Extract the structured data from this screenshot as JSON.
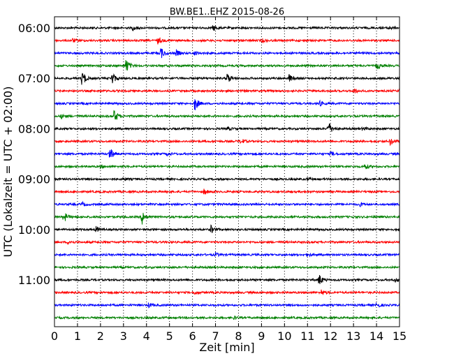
{
  "chart_data": {
    "type": "line",
    "title": "BW.BE1..EHZ 2015-08-26",
    "xlabel": "Zeit  [min]",
    "ylabel": "UTC (Lokalzeit = UTC + 02:00)",
    "xlim": [
      0,
      15
    ],
    "x_ticks": [
      "0",
      "1",
      "2",
      "3",
      "4",
      "5",
      "6",
      "7",
      "8",
      "9",
      "10",
      "11",
      "12",
      "13",
      "14",
      "15"
    ],
    "y_ticks": [
      "06:00",
      "07:00",
      "08:00",
      "09:00",
      "10:00",
      "11:00"
    ],
    "grid": "dotted-vertical",
    "colors": [
      "#000000",
      "#ff0000",
      "#0000ff",
      "#008000"
    ],
    "series": [
      {
        "start": "06:00",
        "color": "#000000",
        "events": [
          {
            "t": 3.4,
            "amp": 0.25
          },
          {
            "t": 6.9,
            "amp": 0.3
          },
          {
            "t": 14.5,
            "amp": 0.2
          }
        ]
      },
      {
        "start": "06:15",
        "color": "#ff0000",
        "events": [
          {
            "t": 0.8,
            "amp": 0.2
          },
          {
            "t": 4.5,
            "amp": 0.35
          },
          {
            "t": 9.0,
            "amp": 0.2
          }
        ]
      },
      {
        "start": "06:30",
        "color": "#0000ff",
        "events": [
          {
            "t": 4.6,
            "amp": 0.7
          },
          {
            "t": 5.3,
            "amp": 0.3
          },
          {
            "t": 6.1,
            "amp": 0.2
          }
        ]
      },
      {
        "start": "06:45",
        "color": "#008000",
        "events": [
          {
            "t": 3.1,
            "amp": 0.8
          },
          {
            "t": 14.0,
            "amp": 0.4
          }
        ]
      },
      {
        "start": "07:00",
        "color": "#000000",
        "events": [
          {
            "t": 1.2,
            "amp": 0.9
          },
          {
            "t": 2.5,
            "amp": 0.7
          },
          {
            "t": 7.5,
            "amp": 0.6
          },
          {
            "t": 10.2,
            "amp": 0.4
          }
        ]
      },
      {
        "start": "07:15",
        "color": "#ff0000",
        "events": [
          {
            "t": 13.0,
            "amp": 0.3
          },
          {
            "t": 15.0,
            "amp": 0.4
          }
        ]
      },
      {
        "start": "07:30",
        "color": "#0000ff",
        "events": [
          {
            "t": 6.1,
            "amp": 0.8
          },
          {
            "t": 11.5,
            "amp": 0.3
          }
        ]
      },
      {
        "start": "07:45",
        "color": "#008000",
        "events": [
          {
            "t": 2.6,
            "amp": 0.7
          },
          {
            "t": 0.3,
            "amp": 0.2
          }
        ]
      },
      {
        "start": "08:00",
        "color": "#000000",
        "events": [
          {
            "t": 11.9,
            "amp": 0.8
          },
          {
            "t": 7.5,
            "amp": 0.2
          },
          {
            "t": 13.4,
            "amp": 0.2
          }
        ]
      },
      {
        "start": "08:15",
        "color": "#ff0000",
        "events": [
          {
            "t": 8.1,
            "amp": 0.3
          },
          {
            "t": 14.6,
            "amp": 0.4
          }
        ]
      },
      {
        "start": "08:30",
        "color": "#0000ff",
        "events": [
          {
            "t": 2.4,
            "amp": 0.7
          },
          {
            "t": 4.9,
            "amp": 0.2
          },
          {
            "t": 12.0,
            "amp": 0.2
          }
        ]
      },
      {
        "start": "08:45",
        "color": "#008000",
        "events": [
          {
            "t": 13.5,
            "amp": 0.3
          },
          {
            "t": 2.0,
            "amp": 0.15
          }
        ]
      },
      {
        "start": "09:00",
        "color": "#000000",
        "events": [
          {
            "t": 3.0,
            "amp": 0.15
          },
          {
            "t": 11.0,
            "amp": 0.15
          }
        ]
      },
      {
        "start": "09:15",
        "color": "#ff0000",
        "events": [
          {
            "t": 6.5,
            "amp": 0.3
          }
        ]
      },
      {
        "start": "09:30",
        "color": "#0000ff",
        "events": [
          {
            "t": 1.2,
            "amp": 0.2
          },
          {
            "t": 13.3,
            "amp": 0.2
          }
        ]
      },
      {
        "start": "09:45",
        "color": "#008000",
        "events": [
          {
            "t": 0.4,
            "amp": 0.6
          },
          {
            "t": 3.8,
            "amp": 0.8
          }
        ]
      },
      {
        "start": "10:00",
        "color": "#000000",
        "events": [
          {
            "t": 1.8,
            "amp": 0.3
          },
          {
            "t": 6.8,
            "amp": 0.4
          }
        ]
      },
      {
        "start": "10:15",
        "color": "#ff0000",
        "events": [
          {
            "t": 0.6,
            "amp": 0.2
          }
        ]
      },
      {
        "start": "10:30",
        "color": "#0000ff",
        "events": [
          {
            "t": 7.0,
            "amp": 0.2
          },
          {
            "t": 11.0,
            "amp": 0.2
          }
        ]
      },
      {
        "start": "10:45",
        "color": "#008000",
        "events": []
      },
      {
        "start": "11:00",
        "color": "#000000",
        "events": [
          {
            "t": 11.5,
            "amp": 0.6
          },
          {
            "t": 14.8,
            "amp": 0.2
          }
        ]
      },
      {
        "start": "11:15",
        "color": "#ff0000",
        "events": [
          {
            "t": 6.1,
            "amp": 0.2
          },
          {
            "t": 11.6,
            "amp": 0.3
          }
        ]
      },
      {
        "start": "11:30",
        "color": "#0000ff",
        "events": [
          {
            "t": 4.1,
            "amp": 0.25
          },
          {
            "t": 14.0,
            "amp": 0.3
          }
        ]
      },
      {
        "start": "11:45",
        "color": "#008000",
        "events": [
          {
            "t": 7.8,
            "amp": 0.15
          }
        ]
      }
    ]
  }
}
